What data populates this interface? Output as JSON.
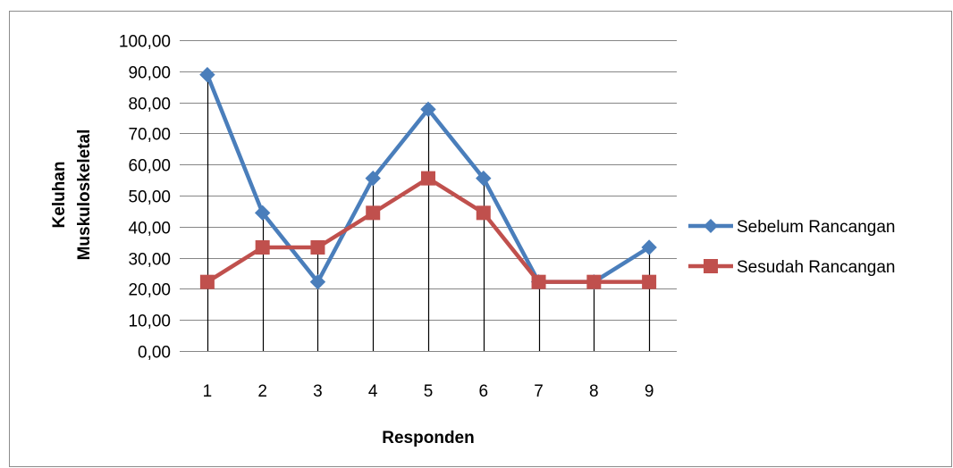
{
  "chart_data": {
    "type": "line",
    "title": "",
    "xlabel": "Responden",
    "ylabel_lines": [
      "Keluhan",
      "Muskuloskeletal"
    ],
    "categories": [
      "1",
      "2",
      "3",
      "4",
      "5",
      "6",
      "7",
      "8",
      "9"
    ],
    "y_ticks": [
      "0,00",
      "10,00",
      "20,00",
      "30,00",
      "40,00",
      "50,00",
      "60,00",
      "70,00",
      "80,00",
      "90,00",
      "100,00"
    ],
    "ylim": [
      0,
      100
    ],
    "grid": true,
    "legend_position": "right",
    "series": [
      {
        "name": "Sebelum Rancangan",
        "color": "#4a7ebb",
        "marker": "diamond",
        "values": [
          88.89,
          44.44,
          22.22,
          55.56,
          77.78,
          55.56,
          22.22,
          22.22,
          33.33
        ]
      },
      {
        "name": "Sesudah Rancangan",
        "color": "#c0504d",
        "marker": "square",
        "values": [
          22.22,
          33.33,
          33.33,
          44.44,
          55.56,
          44.44,
          22.22,
          22.22,
          22.22
        ]
      }
    ]
  }
}
